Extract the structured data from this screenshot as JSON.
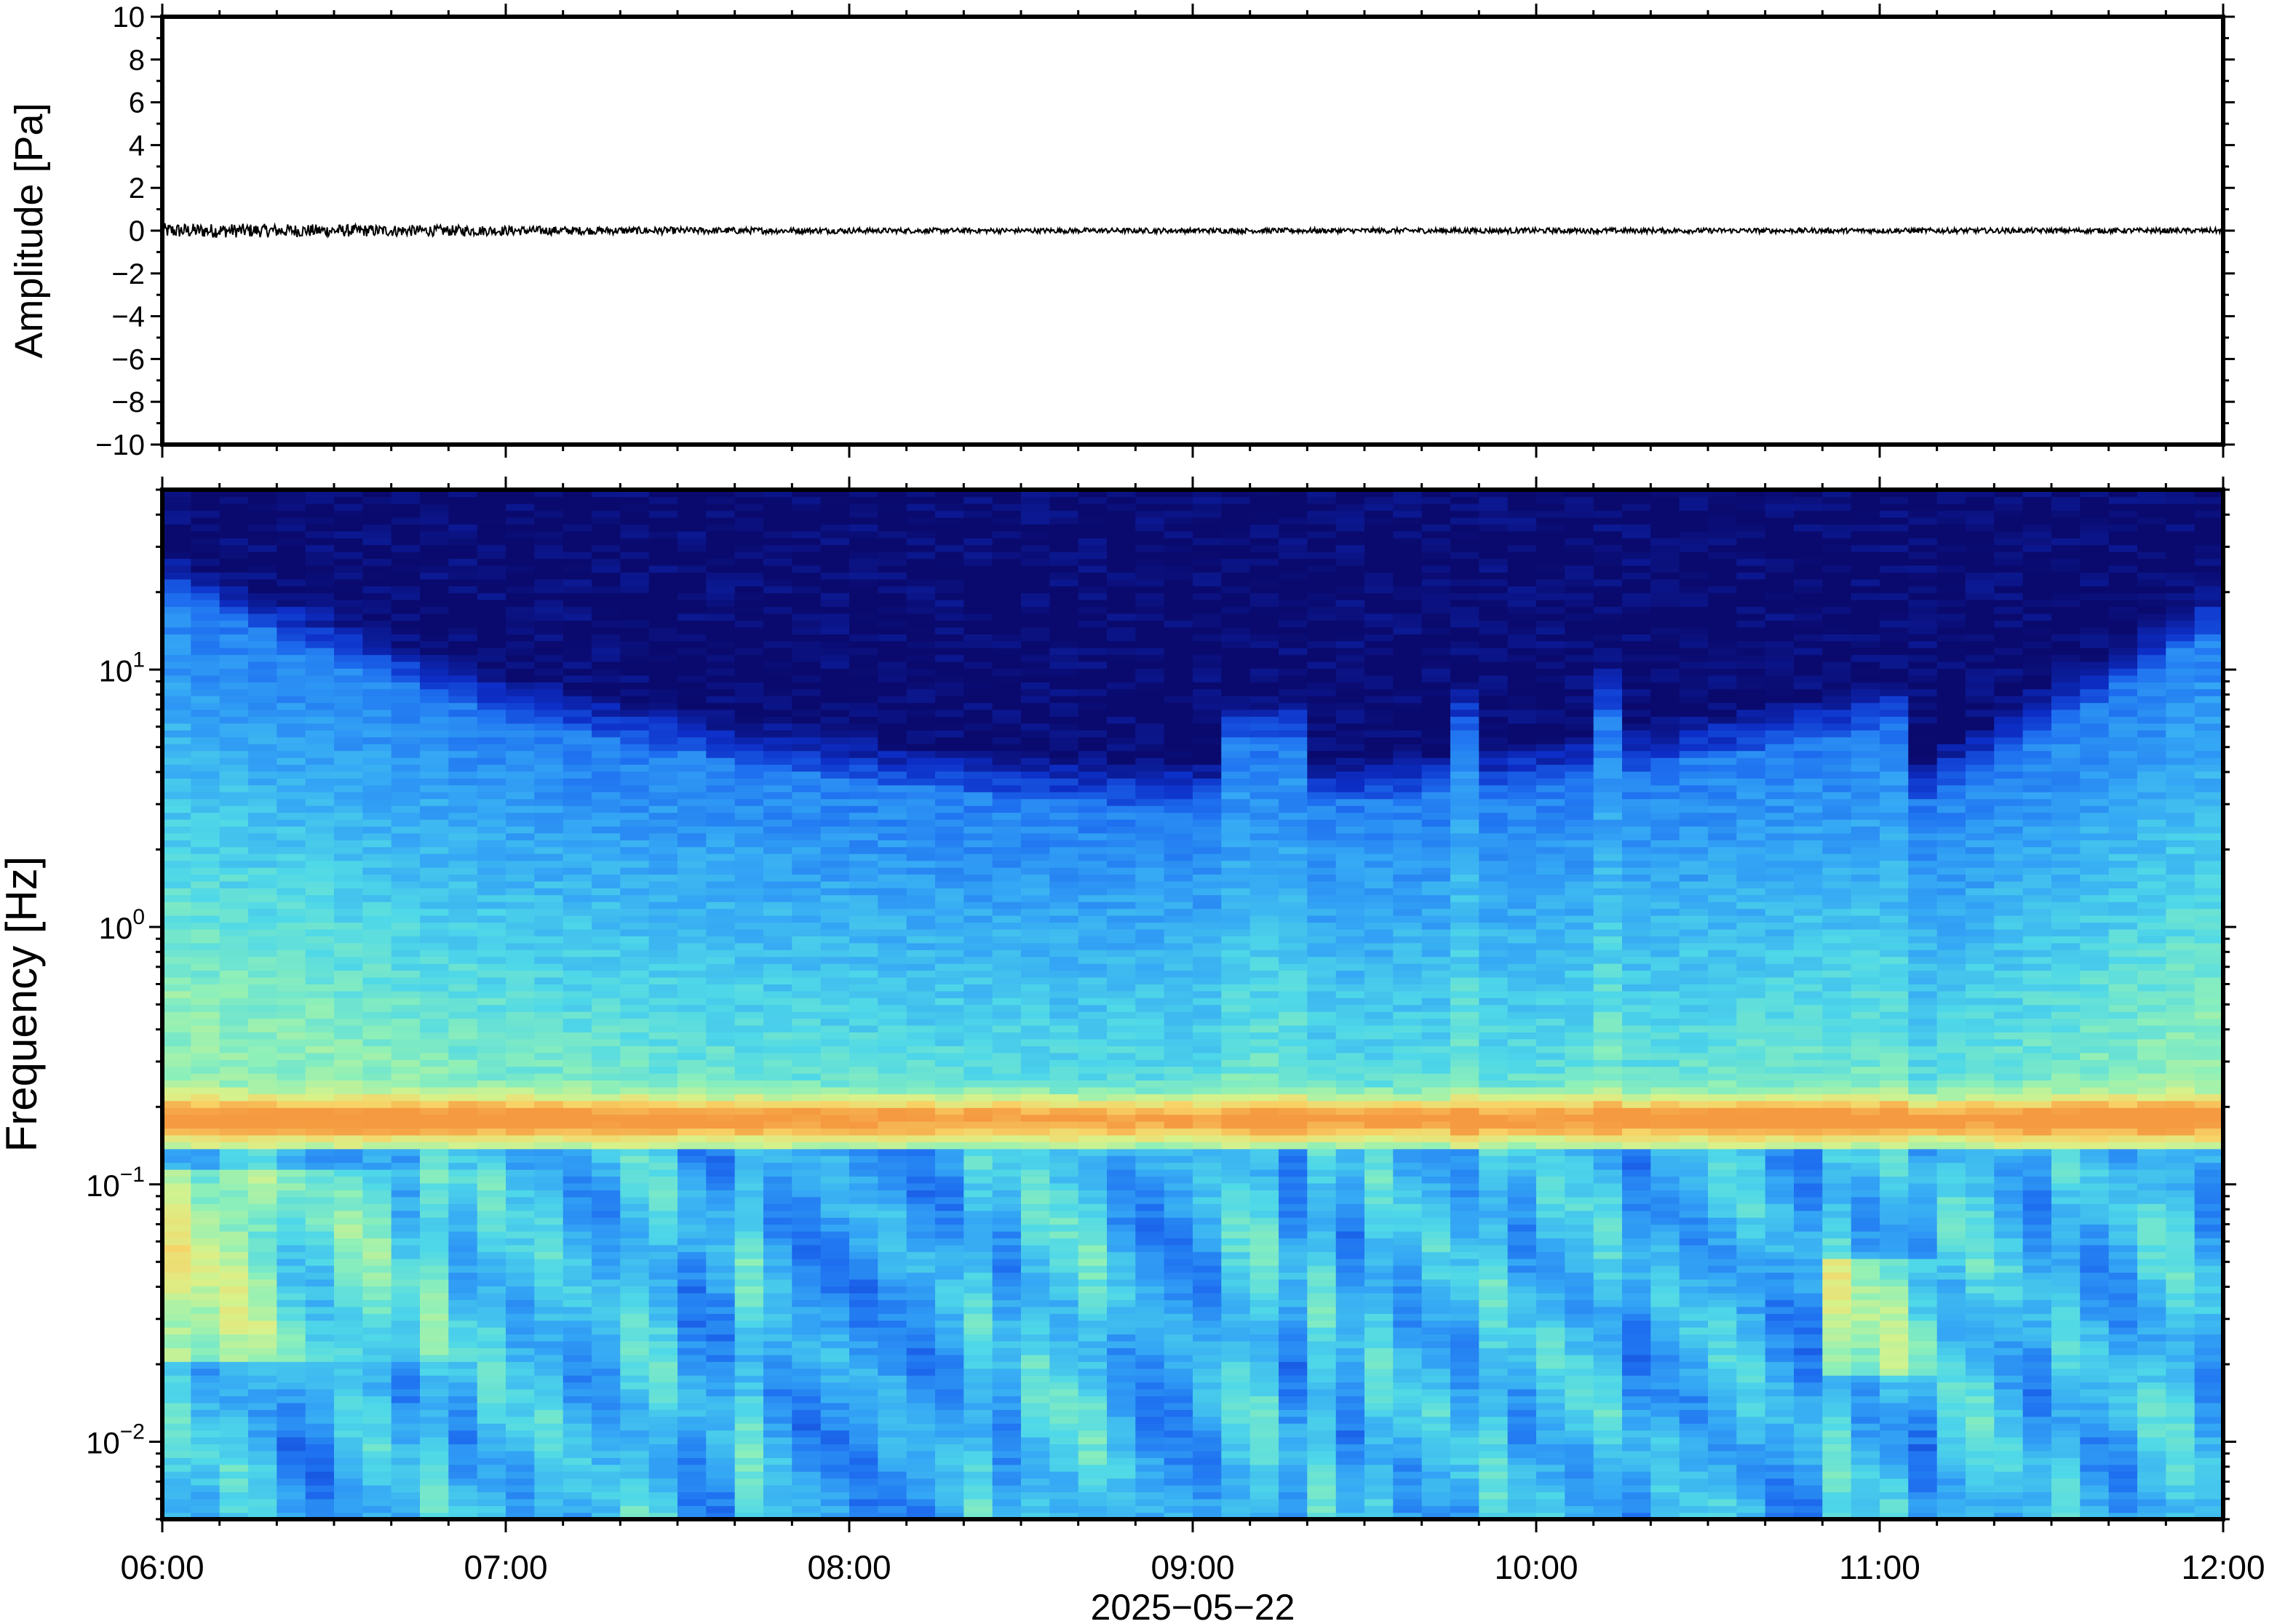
{
  "chart_data": [
    {
      "type": "line",
      "panel": "waveform",
      "ylabel": "Amplitude [Pa]",
      "ylim": [
        -10,
        10
      ],
      "y_ticks": [
        "10",
        "8",
        "6",
        "4",
        "2",
        "0",
        "−2",
        "−4",
        "−6",
        "−8",
        "−10"
      ],
      "y_tick_values": [
        10,
        8,
        6,
        4,
        2,
        0,
        -2,
        -4,
        -6,
        -8,
        -10
      ],
      "xlim": [
        "06:00",
        "12:00"
      ],
      "series": [
        {
          "x": [
            "06:00",
            "06:15",
            "06:30",
            "06:45",
            "07:00",
            "07:30",
            "08:00",
            "08:30",
            "09:00",
            "09:30",
            "10:00",
            "10:30",
            "11:00",
            "11:30",
            "12:00"
          ],
          "envelope": [
            0.35,
            0.3,
            0.25,
            0.18,
            0.15,
            0.12,
            0.12,
            0.12,
            0.12,
            0.13,
            0.12,
            0.12,
            0.12,
            0.12,
            0.12
          ],
          "values": [
            0,
            0,
            0,
            0,
            0,
            0,
            0,
            0,
            0,
            0,
            0,
            0,
            0,
            0,
            0
          ],
          "color": "#000000"
        }
      ]
    },
    {
      "type": "heatmap",
      "panel": "spectrogram",
      "ylabel": "Frequency [Hz]",
      "yscale": "log",
      "ylim": [
        0.005,
        50
      ],
      "y_ticks": [
        {
          "base": "10",
          "exp": "1",
          "value": 10
        },
        {
          "base": "10",
          "exp": "0",
          "value": 1
        },
        {
          "base": "10",
          "exp": "−1",
          "value": 0.1
        },
        {
          "base": "10",
          "exp": "−2",
          "value": 0.01
        }
      ],
      "xlabel": "2025−05−22",
      "x_ticks": [
        "06:00",
        "07:00",
        "08:00",
        "09:00",
        "10:00",
        "11:00",
        "12:00"
      ],
      "xlim": [
        "06:00",
        "12:00"
      ],
      "colormap": [
        "#0a0a6e",
        "#0d2fc8",
        "#1e6ff0",
        "#34a6f5",
        "#4fd8e8",
        "#8ef0b8",
        "#d8f28a",
        "#f8d266",
        "#f59a40"
      ],
      "features": {
        "microseism_band_hz": 0.18,
        "upper_cutoff_hz_start": 20,
        "upper_cutoff_hz_mid": 3,
        "upper_cutoff_hz_end": 15
      }
    }
  ]
}
